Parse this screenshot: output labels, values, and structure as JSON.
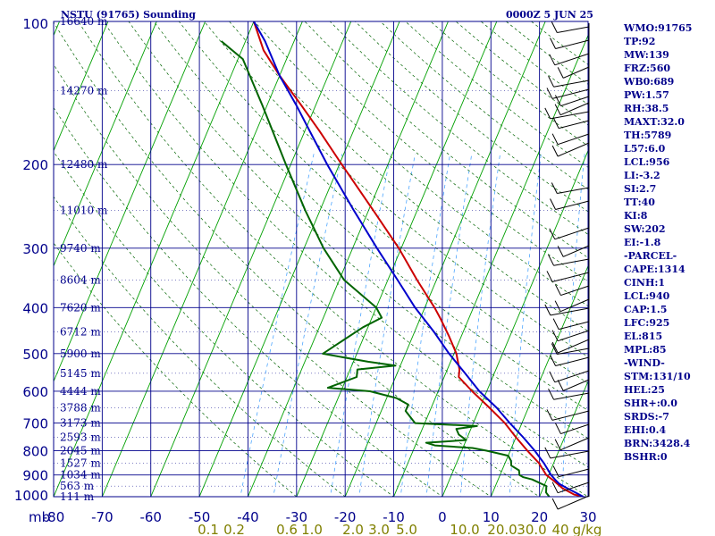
{
  "header": {
    "station": "NSTU (91765) Sounding",
    "time": "0000Z  5 JUN 25"
  },
  "colors": {
    "background": "#ffffff",
    "grid": "#00008b",
    "isotherm": "#00a000",
    "dry_adiabat": "#006400",
    "mixing_ratio": "#4da6ff",
    "temperature": "#cc0000",
    "dewpoint": "#006400",
    "parcel": "#0000cc",
    "label_text": "#00008b",
    "mixing_ratio_text": "#808000",
    "wind_barb": "#000000"
  },
  "stats": [
    "WMO:91765",
    "TP:92",
    "MW:139",
    "FRZ:560",
    "WB0:689",
    "PW:1.57",
    "RH:38.5",
    "MAXT:32.0",
    "TH:5789",
    "L57:6.0",
    "LCL:956",
    "LI:-3.2",
    "SI:2.7",
    "TT:40",
    "KI:8",
    "SW:202",
    "EI:-1.8",
    "-PARCEL-",
    "CAPE:1314",
    "CINH:1",
    "LCL:940",
    "CAP:1.5",
    "LFC:925",
    "EL:815",
    "MPL:85",
    "-WIND-",
    "STM:131/10",
    "HEL:25",
    "SHR+:0.0",
    "SRDS:-7",
    "EHI:0.4",
    "BRN:3428.4",
    "BSHR:0"
  ],
  "chart_data": {
    "type": "line",
    "chart_kind": "skew-T log-P sounding",
    "y_scale": "log",
    "ylim": [
      1000,
      100
    ],
    "xlim": [
      -80,
      30
    ],
    "x_unit": "°C",
    "y_unit": "mb",
    "pressure_ticks": [
      100,
      200,
      300,
      400,
      500,
      600,
      700,
      800,
      900,
      1000
    ],
    "pressure_axis_label": "mb",
    "temperature_ticks": [
      -80,
      -70,
      -60,
      -50,
      -40,
      -30,
      -20,
      -10,
      0,
      10,
      20,
      30
    ],
    "height_labels": [
      {
        "p": 100,
        "label": "16640 m"
      },
      {
        "p": 140,
        "label": "14270 m"
      },
      {
        "p": 200,
        "label": "12480 m"
      },
      {
        "p": 250,
        "label": "11010 m"
      },
      {
        "p": 300,
        "label": "9740 m"
      },
      {
        "p": 350,
        "label": "8604 m"
      },
      {
        "p": 400,
        "label": "7620 m"
      },
      {
        "p": 450,
        "label": "6712 m"
      },
      {
        "p": 500,
        "label": "5900 m"
      },
      {
        "p": 550,
        "label": "5145 m"
      },
      {
        "p": 600,
        "label": "4444 m"
      },
      {
        "p": 650,
        "label": "3788 m"
      },
      {
        "p": 700,
        "label": "3173 m"
      },
      {
        "p": 750,
        "label": "2593 m"
      },
      {
        "p": 800,
        "label": "2045 m"
      },
      {
        "p": 850,
        "label": "1527 m"
      },
      {
        "p": 900,
        "label": "1034 m"
      },
      {
        "p": 950,
        "label": "563 m"
      },
      {
        "p": 1000,
        "label": "111 m"
      }
    ],
    "mixing_ratio_labels": [
      "0.1",
      "0.2",
      "0.6",
      "1.0",
      "2.0",
      "3.0",
      "5.0",
      "10.0",
      "20.0",
      "30.0",
      "40",
      "g/kg"
    ],
    "mixing_ratio_values": [
      0.1,
      0.2,
      0.6,
      1.0,
      2.0,
      3.0,
      5.0,
      10.0,
      20.0,
      30.0
    ],
    "series": [
      {
        "name": "temperature",
        "points": [
          [
            1000,
            29.0
          ],
          [
            990,
            27.0
          ],
          [
            960,
            24.0
          ],
          [
            925,
            21.5
          ],
          [
            900,
            19.5
          ],
          [
            850,
            17.0
          ],
          [
            800,
            13.5
          ],
          [
            750,
            10.0
          ],
          [
            700,
            6.5
          ],
          [
            650,
            2.0
          ],
          [
            600,
            -3.0
          ],
          [
            560,
            -7.0
          ],
          [
            540,
            -7.5
          ],
          [
            510,
            -9.0
          ],
          [
            500,
            -9.5
          ],
          [
            460,
            -12.5
          ],
          [
            420,
            -16.0
          ],
          [
            400,
            -18.0
          ],
          [
            350,
            -24.0
          ],
          [
            300,
            -30.5
          ],
          [
            250,
            -39.0
          ],
          [
            200,
            -49.5
          ],
          [
            170,
            -57.0
          ],
          [
            150,
            -63.0
          ],
          [
            130,
            -70.0
          ],
          [
            115,
            -75.5
          ],
          [
            100,
            -80.0
          ]
        ]
      },
      {
        "name": "dewpoint",
        "points": [
          [
            1000,
            22.0
          ],
          [
            980,
            21.0
          ],
          [
            950,
            20.5
          ],
          [
            920,
            17.0
          ],
          [
            910,
            15.0
          ],
          [
            900,
            14.0
          ],
          [
            880,
            13.5
          ],
          [
            860,
            11.5
          ],
          [
            840,
            11.0
          ],
          [
            820,
            10.0
          ],
          [
            800,
            5.0
          ],
          [
            790,
            2.0
          ],
          [
            780,
            -6.0
          ],
          [
            770,
            -8.0
          ],
          [
            760,
            0.0
          ],
          [
            740,
            -2.0
          ],
          [
            720,
            -3.0
          ],
          [
            710,
            1.0
          ],
          [
            700,
            -12.0
          ],
          [
            660,
            -15.0
          ],
          [
            640,
            -15.0
          ],
          [
            620,
            -18.0
          ],
          [
            600,
            -24.0
          ],
          [
            590,
            -33.0
          ],
          [
            560,
            -28.0
          ],
          [
            540,
            -28.5
          ],
          [
            530,
            -21.0
          ],
          [
            520,
            -27.0
          ],
          [
            500,
            -37.0
          ],
          [
            440,
            -31.0
          ],
          [
            420,
            -28.0
          ],
          [
            400,
            -30.0
          ],
          [
            350,
            -39.0
          ],
          [
            300,
            -46.0
          ],
          [
            250,
            -53.0
          ],
          [
            200,
            -61.0
          ],
          [
            150,
            -71.0
          ],
          [
            120,
            -79.0
          ],
          [
            110,
            -85.0
          ]
        ]
      },
      {
        "name": "parcel",
        "points": [
          [
            1000,
            29.0
          ],
          [
            980,
            27.0
          ],
          [
            960,
            25.0
          ],
          [
            940,
            23.0
          ],
          [
            925,
            22.0
          ],
          [
            900,
            20.5
          ],
          [
            850,
            18.0
          ],
          [
            800,
            15.0
          ],
          [
            750,
            11.5
          ],
          [
            700,
            7.5
          ],
          [
            650,
            3.5
          ],
          [
            600,
            -1.5
          ],
          [
            550,
            -6.0
          ],
          [
            500,
            -11.0
          ],
          [
            450,
            -16.0
          ],
          [
            400,
            -22.0
          ],
          [
            350,
            -28.0
          ],
          [
            300,
            -35.0
          ],
          [
            250,
            -43.0
          ],
          [
            200,
            -52.5
          ],
          [
            170,
            -59.0
          ],
          [
            150,
            -64.0
          ],
          [
            130,
            -70.0
          ],
          [
            110,
            -76.0
          ],
          [
            100,
            -80.0
          ]
        ]
      }
    ]
  }
}
